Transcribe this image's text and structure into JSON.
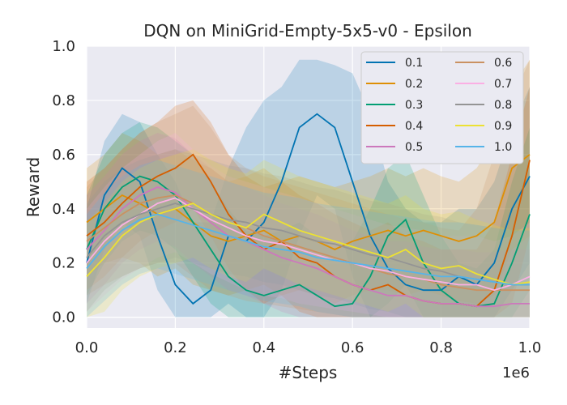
{
  "chart_data": {
    "type": "line",
    "title": "DQN on MiniGrid-Empty-5x5-v0 - Epsilon",
    "xlabel": "#Steps",
    "ylabel": "Reward",
    "x_offset_label": "1e6",
    "xlim": [
      0,
      1.0
    ],
    "ylim": [
      -0.04,
      1.0
    ],
    "xticks": [
      0.0,
      0.2,
      0.4,
      0.6,
      0.8,
      1.0
    ],
    "xtick_labels": [
      "0.0",
      "0.2",
      "0.4",
      "0.6",
      "0.8",
      "1.0"
    ],
    "yticks": [
      0.0,
      0.2,
      0.4,
      0.6,
      0.8,
      1.0
    ],
    "ytick_labels": [
      "0.0",
      "0.2",
      "0.4",
      "0.6",
      "0.8",
      "1.0"
    ],
    "grid": true,
    "legend_position": "top-right",
    "series": [
      {
        "name": "0.1",
        "color": "#0173b2",
        "x": [
          0,
          0.04,
          0.08,
          0.12,
          0.16,
          0.2,
          0.24,
          0.28,
          0.32,
          0.36,
          0.4,
          0.44,
          0.48,
          0.52,
          0.56,
          0.6,
          0.64,
          0.68,
          0.72,
          0.76,
          0.8,
          0.84,
          0.88,
          0.92,
          0.96,
          1.0
        ],
        "y": [
          0.2,
          0.45,
          0.55,
          0.5,
          0.3,
          0.12,
          0.05,
          0.1,
          0.3,
          0.28,
          0.35,
          0.5,
          0.7,
          0.75,
          0.7,
          0.5,
          0.3,
          0.18,
          0.12,
          0.1,
          0.1,
          0.15,
          0.12,
          0.2,
          0.4,
          0.52
        ],
        "upper": [
          0.4,
          0.65,
          0.75,
          0.72,
          0.6,
          0.5,
          0.35,
          0.35,
          0.55,
          0.7,
          0.8,
          0.85,
          0.95,
          0.95,
          0.93,
          0.9,
          0.75,
          0.5,
          0.4,
          0.35,
          0.35,
          0.4,
          0.4,
          0.5,
          0.7,
          0.85
        ],
        "lower": [
          0.05,
          0.25,
          0.35,
          0.3,
          0.1,
          0.0,
          0.0,
          0.0,
          0.05,
          0.0,
          0.0,
          0.1,
          0.3,
          0.45,
          0.4,
          0.15,
          0.0,
          0.0,
          0.0,
          0.0,
          0.0,
          0.0,
          0.0,
          0.0,
          0.1,
          0.2
        ]
      },
      {
        "name": "0.2",
        "color": "#de8f05",
        "x": [
          0,
          0.04,
          0.08,
          0.12,
          0.16,
          0.2,
          0.24,
          0.28,
          0.32,
          0.36,
          0.4,
          0.44,
          0.48,
          0.52,
          0.56,
          0.6,
          0.64,
          0.68,
          0.72,
          0.76,
          0.8,
          0.84,
          0.88,
          0.92,
          0.96,
          1.0
        ],
        "y": [
          0.35,
          0.4,
          0.45,
          0.42,
          0.38,
          0.4,
          0.35,
          0.3,
          0.28,
          0.3,
          0.32,
          0.28,
          0.3,
          0.28,
          0.25,
          0.28,
          0.3,
          0.32,
          0.3,
          0.32,
          0.3,
          0.28,
          0.3,
          0.35,
          0.55,
          0.6
        ],
        "upper": [
          0.55,
          0.6,
          0.68,
          0.65,
          0.6,
          0.62,
          0.58,
          0.55,
          0.5,
          0.52,
          0.55,
          0.5,
          0.52,
          0.5,
          0.48,
          0.5,
          0.52,
          0.55,
          0.52,
          0.55,
          0.52,
          0.5,
          0.55,
          0.65,
          0.85,
          0.95
        ],
        "lower": [
          0.15,
          0.2,
          0.22,
          0.2,
          0.15,
          0.18,
          0.12,
          0.1,
          0.08,
          0.1,
          0.12,
          0.08,
          0.1,
          0.08,
          0.05,
          0.08,
          0.1,
          0.1,
          0.08,
          0.1,
          0.08,
          0.06,
          0.05,
          0.08,
          0.25,
          0.3
        ]
      },
      {
        "name": "0.3",
        "color": "#029e73",
        "x": [
          0,
          0.04,
          0.08,
          0.12,
          0.16,
          0.2,
          0.24,
          0.28,
          0.32,
          0.36,
          0.4,
          0.44,
          0.48,
          0.52,
          0.56,
          0.6,
          0.64,
          0.68,
          0.72,
          0.76,
          0.8,
          0.84,
          0.88,
          0.92,
          0.96,
          1.0
        ],
        "y": [
          0.25,
          0.4,
          0.48,
          0.52,
          0.5,
          0.45,
          0.35,
          0.25,
          0.15,
          0.1,
          0.08,
          0.1,
          0.12,
          0.08,
          0.04,
          0.05,
          0.15,
          0.3,
          0.36,
          0.2,
          0.1,
          0.05,
          0.04,
          0.05,
          0.2,
          0.38
        ],
        "upper": [
          0.45,
          0.6,
          0.68,
          0.72,
          0.7,
          0.65,
          0.6,
          0.5,
          0.4,
          0.32,
          0.3,
          0.32,
          0.35,
          0.3,
          0.25,
          0.28,
          0.4,
          0.55,
          0.6,
          0.45,
          0.3,
          0.2,
          0.18,
          0.25,
          0.5,
          0.7
        ],
        "lower": [
          0.08,
          0.2,
          0.28,
          0.32,
          0.3,
          0.25,
          0.15,
          0.05,
          0.0,
          0.0,
          0.0,
          0.0,
          0.0,
          0.0,
          0.0,
          0.0,
          0.0,
          0.05,
          0.12,
          0.0,
          0.0,
          0.0,
          0.0,
          0.0,
          0.0,
          0.1
        ]
      },
      {
        "name": "0.4",
        "color": "#d55e00",
        "x": [
          0,
          0.04,
          0.08,
          0.12,
          0.16,
          0.2,
          0.24,
          0.28,
          0.32,
          0.36,
          0.4,
          0.44,
          0.48,
          0.52,
          0.56,
          0.6,
          0.64,
          0.68,
          0.72,
          0.76,
          0.8,
          0.84,
          0.88,
          0.92,
          0.96,
          1.0
        ],
        "y": [
          0.3,
          0.35,
          0.42,
          0.48,
          0.52,
          0.55,
          0.6,
          0.5,
          0.38,
          0.3,
          0.25,
          0.28,
          0.22,
          0.2,
          0.15,
          0.12,
          0.1,
          0.12,
          0.08,
          0.06,
          0.05,
          0.05,
          0.04,
          0.1,
          0.3,
          0.58
        ],
        "upper": [
          0.5,
          0.55,
          0.62,
          0.68,
          0.72,
          0.78,
          0.8,
          0.72,
          0.6,
          0.52,
          0.48,
          0.5,
          0.45,
          0.42,
          0.38,
          0.35,
          0.32,
          0.35,
          0.3,
          0.28,
          0.25,
          0.25,
          0.25,
          0.35,
          0.6,
          0.85
        ],
        "lower": [
          0.1,
          0.15,
          0.22,
          0.28,
          0.32,
          0.35,
          0.4,
          0.3,
          0.18,
          0.1,
          0.05,
          0.08,
          0.02,
          0.0,
          0.0,
          0.0,
          0.0,
          0.0,
          0.0,
          0.0,
          0.0,
          0.0,
          0.0,
          0.0,
          0.05,
          0.3
        ]
      },
      {
        "name": "0.5",
        "color": "#cc78bc",
        "x": [
          0,
          0.04,
          0.08,
          0.12,
          0.16,
          0.2,
          0.24,
          0.28,
          0.32,
          0.36,
          0.4,
          0.44,
          0.48,
          0.52,
          0.56,
          0.6,
          0.64,
          0.68,
          0.72,
          0.76,
          0.8,
          0.84,
          0.88,
          0.92,
          0.96,
          1.0
        ],
        "y": [
          0.25,
          0.32,
          0.4,
          0.45,
          0.48,
          0.46,
          0.4,
          0.35,
          0.3,
          0.28,
          0.25,
          0.22,
          0.2,
          0.18,
          0.15,
          0.12,
          0.1,
          0.08,
          0.08,
          0.06,
          0.05,
          0.05,
          0.04,
          0.04,
          0.05,
          0.05
        ],
        "upper": [
          0.45,
          0.52,
          0.6,
          0.65,
          0.68,
          0.66,
          0.6,
          0.55,
          0.5,
          0.48,
          0.45,
          0.42,
          0.4,
          0.38,
          0.35,
          0.32,
          0.3,
          0.28,
          0.28,
          0.26,
          0.25,
          0.25,
          0.24,
          0.24,
          0.25,
          0.25
        ],
        "lower": [
          0.05,
          0.12,
          0.2,
          0.25,
          0.28,
          0.26,
          0.2,
          0.15,
          0.1,
          0.08,
          0.05,
          0.02,
          0.0,
          0.0,
          0.0,
          0.0,
          0.0,
          0.0,
          0.0,
          0.0,
          0.0,
          0.0,
          0.0,
          0.0,
          0.0,
          0.0
        ]
      },
      {
        "name": "0.6",
        "color": "#ca9161",
        "x": [
          0,
          0.04,
          0.08,
          0.12,
          0.16,
          0.2,
          0.24,
          0.28,
          0.32,
          0.36,
          0.4,
          0.44,
          0.48,
          0.52,
          0.56,
          0.6,
          0.64,
          0.68,
          0.72,
          0.76,
          0.8,
          0.84,
          0.88,
          0.92,
          0.96,
          1.0
        ],
        "y": [
          0.28,
          0.33,
          0.38,
          0.42,
          0.44,
          0.45,
          0.42,
          0.38,
          0.35,
          0.33,
          0.3,
          0.28,
          0.26,
          0.24,
          0.22,
          0.2,
          0.18,
          0.16,
          0.15,
          0.14,
          0.12,
          0.11,
          0.1,
          0.1,
          0.1,
          0.1
        ],
        "upper": [
          0.48,
          0.55,
          0.62,
          0.68,
          0.72,
          0.75,
          0.78,
          0.7,
          0.6,
          0.55,
          0.52,
          0.5,
          0.48,
          0.46,
          0.44,
          0.42,
          0.4,
          0.38,
          0.36,
          0.35,
          0.33,
          0.32,
          0.4,
          0.6,
          0.8,
          0.95
        ],
        "lower": [
          0.08,
          0.12,
          0.15,
          0.18,
          0.2,
          0.2,
          0.15,
          0.1,
          0.08,
          0.06,
          0.05,
          0.04,
          0.03,
          0.02,
          0.01,
          0.0,
          0.0,
          0.0,
          0.0,
          0.0,
          0.0,
          0.0,
          0.0,
          0.0,
          0.0,
          0.0
        ]
      },
      {
        "name": "0.7",
        "color": "#fbafe4",
        "x": [
          0,
          0.04,
          0.08,
          0.12,
          0.16,
          0.2,
          0.24,
          0.28,
          0.32,
          0.36,
          0.4,
          0.44,
          0.48,
          0.52,
          0.56,
          0.6,
          0.64,
          0.68,
          0.72,
          0.76,
          0.8,
          0.84,
          0.88,
          0.92,
          0.96,
          1.0
        ],
        "y": [
          0.2,
          0.28,
          0.34,
          0.38,
          0.42,
          0.44,
          0.4,
          0.36,
          0.33,
          0.3,
          0.28,
          0.27,
          0.25,
          0.23,
          0.21,
          0.2,
          0.18,
          0.17,
          0.15,
          0.14,
          0.13,
          0.12,
          0.12,
          0.1,
          0.12,
          0.15
        ],
        "upper": [
          0.4,
          0.48,
          0.55,
          0.6,
          0.65,
          0.68,
          0.62,
          0.56,
          0.52,
          0.5,
          0.48,
          0.46,
          0.44,
          0.42,
          0.4,
          0.38,
          0.36,
          0.34,
          0.33,
          0.32,
          0.3,
          0.3,
          0.3,
          0.28,
          0.3,
          0.35
        ],
        "lower": [
          0.02,
          0.08,
          0.14,
          0.18,
          0.22,
          0.24,
          0.2,
          0.16,
          0.13,
          0.1,
          0.08,
          0.07,
          0.05,
          0.04,
          0.03,
          0.02,
          0.01,
          0.0,
          0.0,
          0.0,
          0.0,
          0.0,
          0.0,
          0.0,
          0.0,
          0.0
        ]
      },
      {
        "name": "0.8",
        "color": "#949494",
        "x": [
          0,
          0.04,
          0.08,
          0.12,
          0.16,
          0.2,
          0.24,
          0.28,
          0.32,
          0.36,
          0.4,
          0.44,
          0.48,
          0.52,
          0.56,
          0.6,
          0.64,
          0.68,
          0.72,
          0.76,
          0.8,
          0.84,
          0.88,
          0.92,
          0.96,
          1.0
        ],
        "y": [
          0.22,
          0.3,
          0.35,
          0.38,
          0.4,
          0.42,
          0.4,
          0.38,
          0.36,
          0.35,
          0.33,
          0.32,
          0.3,
          0.28,
          0.27,
          0.25,
          0.23,
          0.22,
          0.2,
          0.18,
          0.17,
          0.15,
          0.14,
          0.13,
          0.12,
          0.12
        ],
        "upper": [
          0.42,
          0.5,
          0.55,
          0.58,
          0.6,
          0.62,
          0.6,
          0.58,
          0.56,
          0.55,
          0.53,
          0.52,
          0.5,
          0.48,
          0.47,
          0.45,
          0.43,
          0.42,
          0.4,
          0.38,
          0.37,
          0.35,
          0.34,
          0.33,
          0.32,
          0.32
        ],
        "lower": [
          0.02,
          0.1,
          0.15,
          0.18,
          0.2,
          0.22,
          0.2,
          0.18,
          0.16,
          0.15,
          0.13,
          0.12,
          0.1,
          0.08,
          0.07,
          0.05,
          0.03,
          0.02,
          0.0,
          0.0,
          0.0,
          0.0,
          0.0,
          0.0,
          0.0,
          0.0
        ]
      },
      {
        "name": "0.9",
        "color": "#ece133",
        "x": [
          0,
          0.04,
          0.08,
          0.12,
          0.16,
          0.2,
          0.24,
          0.28,
          0.32,
          0.36,
          0.4,
          0.44,
          0.48,
          0.52,
          0.56,
          0.6,
          0.64,
          0.68,
          0.72,
          0.76,
          0.8,
          0.84,
          0.88,
          0.92,
          0.96,
          1.0
        ],
        "y": [
          0.15,
          0.22,
          0.3,
          0.35,
          0.38,
          0.4,
          0.42,
          0.38,
          0.35,
          0.33,
          0.38,
          0.35,
          0.32,
          0.3,
          0.28,
          0.26,
          0.24,
          0.22,
          0.25,
          0.2,
          0.18,
          0.19,
          0.16,
          0.14,
          0.12,
          0.13
        ],
        "upper": [
          0.35,
          0.42,
          0.5,
          0.55,
          0.58,
          0.6,
          0.62,
          0.58,
          0.55,
          0.53,
          0.58,
          0.55,
          0.52,
          0.5,
          0.48,
          0.46,
          0.44,
          0.42,
          0.45,
          0.4,
          0.38,
          0.39,
          0.36,
          0.34,
          0.32,
          0.33
        ],
        "lower": [
          0.0,
          0.02,
          0.1,
          0.15,
          0.18,
          0.2,
          0.22,
          0.18,
          0.15,
          0.13,
          0.18,
          0.15,
          0.12,
          0.1,
          0.08,
          0.06,
          0.04,
          0.02,
          0.05,
          0.0,
          0.0,
          0.0,
          0.0,
          0.0,
          0.0,
          0.0
        ]
      },
      {
        "name": "1.0",
        "color": "#56b4e9",
        "x": [
          0,
          0.04,
          0.08,
          0.12,
          0.16,
          0.2,
          0.24,
          0.28,
          0.32,
          0.36,
          0.4,
          0.44,
          0.48,
          0.52,
          0.56,
          0.6,
          0.64,
          0.68,
          0.72,
          0.76,
          0.8,
          0.84,
          0.88,
          0.92,
          0.96,
          1.0
        ],
        "y": [
          0.18,
          0.26,
          0.32,
          0.36,
          0.38,
          0.36,
          0.34,
          0.32,
          0.3,
          0.28,
          0.26,
          0.25,
          0.24,
          0.22,
          0.21,
          0.2,
          0.19,
          0.18,
          0.17,
          0.16,
          0.15,
          0.15,
          0.14,
          0.13,
          0.12,
          0.12
        ],
        "upper": [
          0.38,
          0.46,
          0.52,
          0.56,
          0.58,
          0.56,
          0.54,
          0.52,
          0.5,
          0.48,
          0.46,
          0.45,
          0.44,
          0.42,
          0.41,
          0.4,
          0.39,
          0.38,
          0.37,
          0.36,
          0.35,
          0.35,
          0.34,
          0.33,
          0.32,
          0.32
        ],
        "lower": [
          0.0,
          0.06,
          0.12,
          0.16,
          0.18,
          0.16,
          0.14,
          0.12,
          0.1,
          0.08,
          0.06,
          0.05,
          0.04,
          0.02,
          0.01,
          0.0,
          0.0,
          0.0,
          0.0,
          0.0,
          0.0,
          0.0,
          0.0,
          0.0,
          0.0,
          0.0
        ]
      }
    ]
  }
}
